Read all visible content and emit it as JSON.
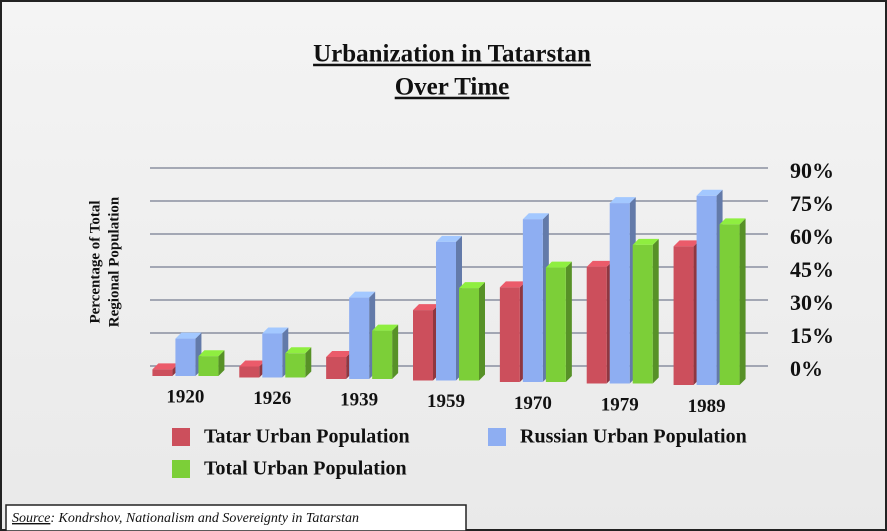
{
  "chart_data": {
    "type": "bar",
    "title": [
      "Urbanization in Tatarstan",
      "Over Time"
    ],
    "y_label": [
      "Percentage of Total",
      "Regional Population"
    ],
    "categories": [
      "1920",
      "1926",
      "1939",
      "1959",
      "1970",
      "1979",
      "1989"
    ],
    "series": [
      {
        "name": "Tatar Urban Population",
        "color": "#cc4f5c",
        "values": [
          3,
          5,
          10,
          32,
          43,
          53,
          63
        ]
      },
      {
        "name": "Russian Urban Population",
        "color": "#8eaef2",
        "values": [
          17,
          20,
          37,
          63,
          74,
          82,
          86
        ]
      },
      {
        "name": "Total Urban Population",
        "color": "#7ccf38",
        "values": [
          9,
          11,
          22,
          42,
          52,
          63,
          73
        ]
      }
    ],
    "ylim": [
      0,
      90
    ],
    "yticks": [
      {
        "value": 0,
        "label": "0%"
      },
      {
        "value": 15,
        "label": "15%"
      },
      {
        "value": 30,
        "label": "30%"
      },
      {
        "value": 45,
        "label": "45%"
      },
      {
        "value": 60,
        "label": "60%"
      },
      {
        "value": 75,
        "label": "75%"
      },
      {
        "value": 90,
        "label": "90%"
      }
    ],
    "grid": true,
    "source_label": "Source",
    "source_text": ": Kondrshov, Nationalism and Sovereignty in Tatarstan"
  }
}
